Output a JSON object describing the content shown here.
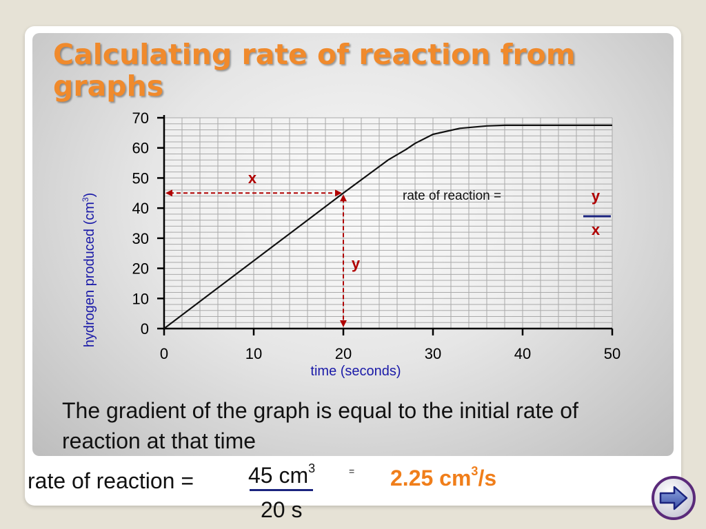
{
  "title": {
    "line1": "Calculating rate of reaction from",
    "line2": "graphs"
  },
  "chart_data": {
    "type": "line",
    "xlabel": "time (seconds)",
    "ylabel_main": "hydrogen produced (cm",
    "ylabel_sup": "3",
    "ylabel_end": ")",
    "xlim": [
      0,
      50
    ],
    "ylim": [
      0,
      70
    ],
    "x_ticks": [
      0,
      10,
      20,
      30,
      40,
      50
    ],
    "y_ticks": [
      0,
      10,
      20,
      30,
      40,
      50,
      60,
      70
    ],
    "grid": true,
    "series": [
      {
        "x": [
          0,
          5,
          10,
          15,
          20,
          25,
          27,
          28,
          30,
          33,
          36,
          38,
          40,
          45,
          50
        ],
        "y": [
          0,
          11.25,
          22.5,
          33.75,
          45,
          56,
          59.5,
          61.5,
          64.5,
          66.5,
          67.3,
          67.5,
          67.5,
          67.5,
          67.5
        ]
      }
    ],
    "annotations": {
      "point": {
        "x": 20,
        "y": 45
      },
      "x_label": "x",
      "y_label": "y",
      "rate_text": "rate of reaction =",
      "frac_num": "y",
      "frac_den": "x"
    }
  },
  "caption": "The gradient of the graph is equal to the initial rate of reaction at that time",
  "formula": {
    "label": "rate of reaction =",
    "numerator": "45 cm",
    "numerator_sup": "3",
    "denominator": "20 s",
    "equals": "=",
    "result": "2.25 cm",
    "result_sup": "3",
    "result_end": "/s"
  },
  "colors": {
    "title": "#f08a2c",
    "axis_label": "#1a1aa8",
    "annotation": "#b00000",
    "result": "#f07e1a",
    "fraction_line": "#1a237e"
  },
  "nav": {
    "next_icon": "arrow-right-icon"
  }
}
